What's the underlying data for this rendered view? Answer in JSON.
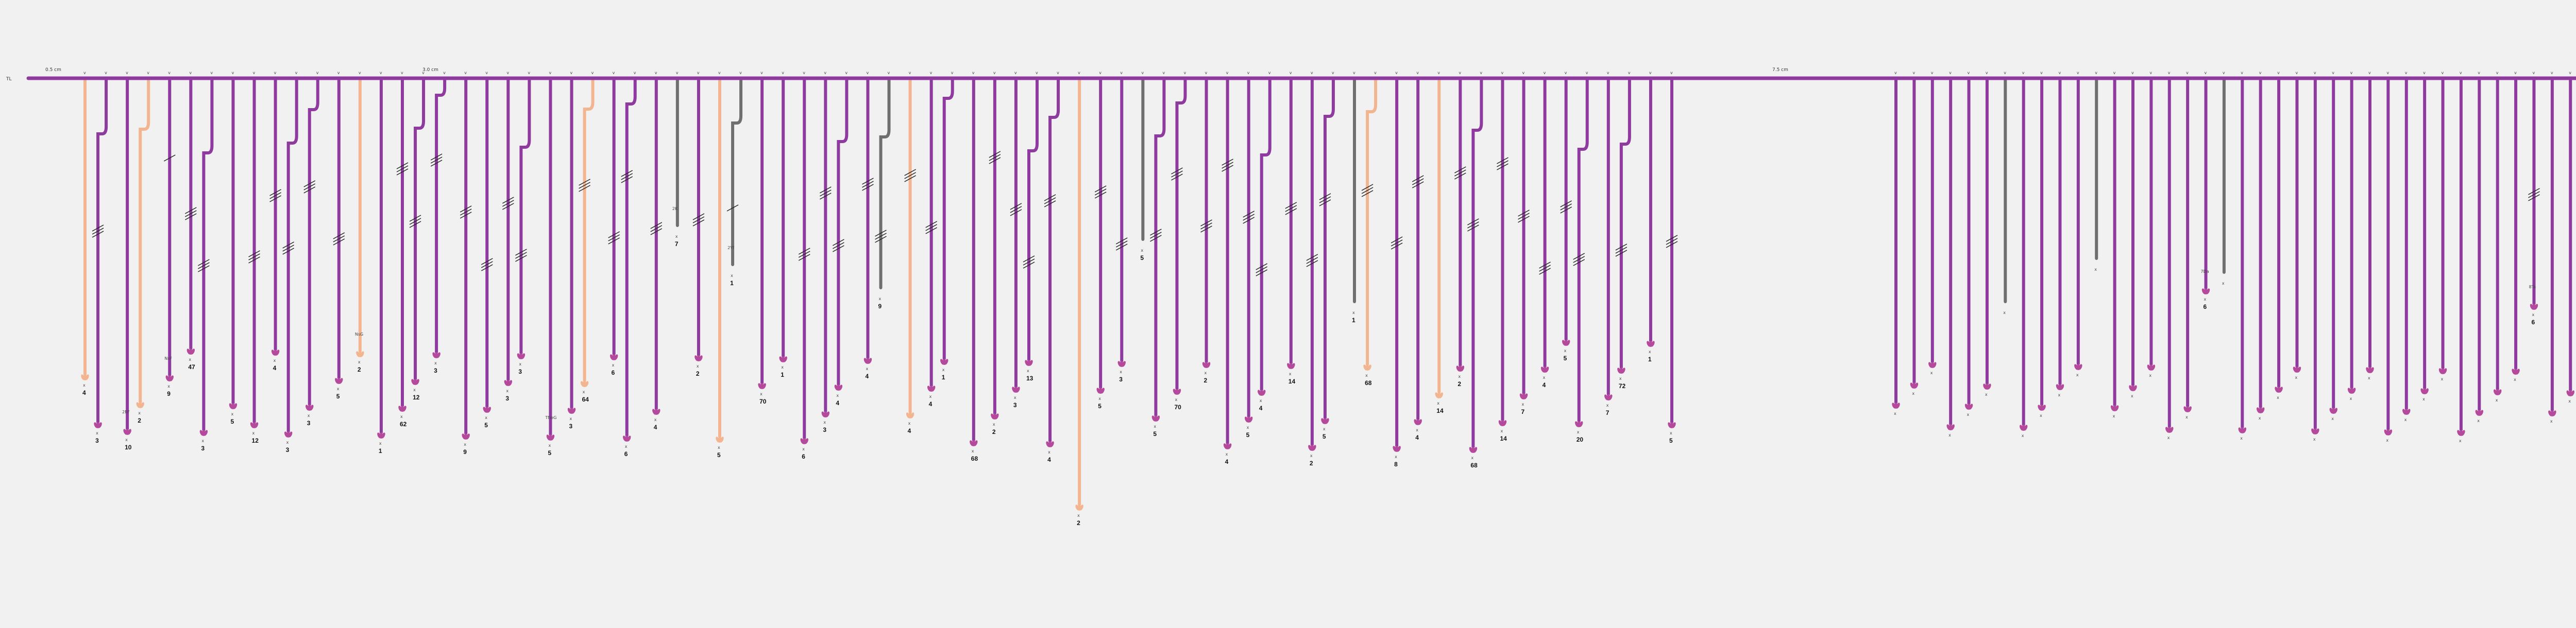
{
  "diagram": {
    "title": "",
    "trunk_label": "TL",
    "scale_labels": [
      "0.5 cm",
      "3.0 cm",
      "7.5 cm"
    ],
    "colors": {
      "purple": "#8e3a9e",
      "peach": "#f2b590",
      "gray": "#6f6f6f",
      "ink": "#222222"
    },
    "branches": [
      {
        "id": "b1",
        "type": "peach",
        "count": "4",
        "code": "",
        "ticks": "none"
      },
      {
        "id": "b2",
        "type": "purple",
        "count": "3",
        "code": "",
        "ticks": "double"
      },
      {
        "id": "b3",
        "type": "purple",
        "count": "10",
        "code": "2Nf",
        "ticks": "none"
      },
      {
        "id": "b4",
        "type": "peach",
        "count": "2",
        "code": "",
        "ticks": "none"
      },
      {
        "id": "b5",
        "type": "purple",
        "count": "9",
        "code": "NsF",
        "ticks": "single"
      },
      {
        "id": "b6",
        "type": "purple",
        "count": "47",
        "code": "",
        "ticks": "double"
      },
      {
        "id": "b7",
        "type": "purple",
        "count": "3",
        "code": "",
        "ticks": "double"
      },
      {
        "id": "b8",
        "type": "purple",
        "count": "5",
        "code": "",
        "ticks": "none"
      },
      {
        "id": "b9",
        "type": "purple",
        "count": "12",
        "code": "",
        "ticks": "double"
      },
      {
        "id": "b10",
        "type": "purple",
        "count": "4",
        "code": "",
        "ticks": "double"
      },
      {
        "id": "b11",
        "type": "purple",
        "count": "3",
        "code": "",
        "ticks": "double"
      },
      {
        "id": "b12",
        "type": "purple",
        "count": "3",
        "code": "",
        "ticks": "double"
      },
      {
        "id": "b13",
        "type": "purple",
        "count": "5",
        "code": "",
        "ticks": "double"
      },
      {
        "id": "b14",
        "type": "peach",
        "count": "2",
        "code": "NsG",
        "ticks": "none"
      },
      {
        "id": "b15",
        "type": "purple",
        "count": "1",
        "code": "",
        "ticks": "none"
      },
      {
        "id": "b16",
        "type": "purple",
        "count": "62",
        "code": "",
        "ticks": "double"
      },
      {
        "id": "b17",
        "type": "purple",
        "count": "12",
        "code": "",
        "ticks": "double"
      },
      {
        "id": "b18",
        "type": "purple",
        "count": "3",
        "code": "",
        "ticks": "double"
      },
      {
        "id": "b19",
        "type": "purple",
        "count": "9",
        "code": "",
        "ticks": "double"
      },
      {
        "id": "b20",
        "type": "purple",
        "count": "5",
        "code": "",
        "ticks": "double"
      },
      {
        "id": "b21",
        "type": "purple",
        "count": "3",
        "code": "",
        "ticks": "double"
      },
      {
        "id": "b22",
        "type": "purple",
        "count": "3",
        "code": "",
        "ticks": "double"
      },
      {
        "id": "b23",
        "type": "purple",
        "count": "5",
        "code": "TNeG",
        "ticks": "none"
      },
      {
        "id": "b24",
        "type": "purple",
        "count": "3",
        "code": "",
        "ticks": "none"
      },
      {
        "id": "b25",
        "type": "peach",
        "count": "64",
        "code": "",
        "ticks": "double"
      },
      {
        "id": "b26",
        "type": "purple",
        "count": "6",
        "code": "",
        "ticks": "double"
      },
      {
        "id": "b27",
        "type": "purple",
        "count": "6",
        "code": "",
        "ticks": "double"
      },
      {
        "id": "b28",
        "type": "purple",
        "count": "4",
        "code": "",
        "ticks": "double"
      },
      {
        "id": "b29",
        "type": "gray",
        "count": "7",
        "code": "2K",
        "ticks": "none"
      },
      {
        "id": "b30",
        "type": "purple",
        "count": "2",
        "code": "",
        "ticks": "double"
      },
      {
        "id": "b31",
        "type": "peach",
        "count": "5",
        "code": "",
        "ticks": "none"
      },
      {
        "id": "b32",
        "type": "gray",
        "count": "1",
        "code": "2Yf",
        "ticks": "single"
      },
      {
        "id": "b33",
        "type": "purple",
        "count": "70",
        "code": "",
        "ticks": "none"
      },
      {
        "id": "b34",
        "type": "purple",
        "count": "1",
        "code": "",
        "ticks": "none"
      },
      {
        "id": "b35",
        "type": "purple",
        "count": "6",
        "code": "",
        "ticks": "double"
      },
      {
        "id": "b36",
        "type": "purple",
        "count": "3",
        "code": "",
        "ticks": "double"
      },
      {
        "id": "b37",
        "type": "purple",
        "count": "4",
        "code": "",
        "ticks": "double"
      },
      {
        "id": "b38",
        "type": "purple",
        "count": "4",
        "code": "",
        "ticks": "double"
      },
      {
        "id": "b39",
        "type": "gray",
        "count": "9",
        "code": "",
        "ticks": "double"
      },
      {
        "id": "b40",
        "type": "peach",
        "count": "4",
        "code": "",
        "ticks": "double"
      },
      {
        "id": "b41",
        "type": "purple",
        "count": "4",
        "code": "",
        "ticks": "double"
      },
      {
        "id": "b42",
        "type": "purple",
        "count": "1",
        "code": "",
        "ticks": "none"
      },
      {
        "id": "b43",
        "type": "purple",
        "count": "68",
        "code": "",
        "ticks": "none"
      },
      {
        "id": "b44",
        "type": "purple",
        "count": "2",
        "code": "",
        "ticks": "double"
      },
      {
        "id": "b45",
        "type": "purple",
        "count": "3",
        "code": "",
        "ticks": "double"
      },
      {
        "id": "b46",
        "type": "purple",
        "count": "13",
        "code": "",
        "ticks": "double"
      },
      {
        "id": "b47",
        "type": "purple",
        "count": "4",
        "code": "",
        "ticks": "double"
      },
      {
        "id": "b48",
        "type": "peach",
        "count": "2",
        "code": "",
        "ticks": "none"
      },
      {
        "id": "b49",
        "type": "purple",
        "count": "5",
        "code": "",
        "ticks": "double"
      },
      {
        "id": "b50",
        "type": "purple",
        "count": "3",
        "code": "",
        "ticks": "double"
      },
      {
        "id": "b51",
        "type": "gray",
        "count": "5",
        "code": "",
        "ticks": "none"
      },
      {
        "id": "b52",
        "type": "purple",
        "count": "5",
        "code": "",
        "ticks": "double"
      },
      {
        "id": "b53",
        "type": "purple",
        "count": "70",
        "code": "",
        "ticks": "double"
      },
      {
        "id": "b54",
        "type": "purple",
        "count": "2",
        "code": "",
        "ticks": "double"
      },
      {
        "id": "b55",
        "type": "purple",
        "count": "4",
        "code": "",
        "ticks": "double"
      },
      {
        "id": "b56",
        "type": "purple",
        "count": "5",
        "code": "",
        "ticks": "double"
      },
      {
        "id": "b57",
        "type": "purple",
        "count": "4",
        "code": "",
        "ticks": "double"
      },
      {
        "id": "b58",
        "type": "purple",
        "count": "14",
        "code": "",
        "ticks": "double"
      },
      {
        "id": "b59",
        "type": "purple",
        "count": "2",
        "code": "",
        "ticks": "double"
      },
      {
        "id": "b60",
        "type": "purple",
        "count": "5",
        "code": "",
        "ticks": "double"
      },
      {
        "id": "b61",
        "type": "gray",
        "count": "1",
        "code": "",
        "ticks": "none"
      },
      {
        "id": "b62",
        "type": "peach",
        "count": "68",
        "code": "",
        "ticks": "double"
      },
      {
        "id": "b63",
        "type": "purple",
        "count": "8",
        "code": "",
        "ticks": "double"
      },
      {
        "id": "b64",
        "type": "purple",
        "count": "4",
        "code": "",
        "ticks": "double"
      },
      {
        "id": "b65",
        "type": "peach",
        "count": "14",
        "code": "",
        "ticks": "none"
      },
      {
        "id": "b66",
        "type": "purple",
        "count": "2",
        "code": "",
        "ticks": "double"
      },
      {
        "id": "b67",
        "type": "purple",
        "count": "68",
        "code": "",
        "ticks": "double"
      },
      {
        "id": "b68",
        "type": "purple",
        "count": "14",
        "code": "",
        "ticks": "double"
      },
      {
        "id": "b69",
        "type": "purple",
        "count": "7",
        "code": "",
        "ticks": "double"
      },
      {
        "id": "b70",
        "type": "purple",
        "count": "4",
        "code": "",
        "ticks": "double"
      },
      {
        "id": "b71",
        "type": "purple",
        "count": "5",
        "code": "",
        "ticks": "double"
      },
      {
        "id": "b72",
        "type": "purple",
        "count": "20",
        "code": "",
        "ticks": "double"
      },
      {
        "id": "b73",
        "type": "purple",
        "count": "7",
        "code": "",
        "ticks": "none"
      },
      {
        "id": "b74",
        "type": "purple",
        "count": "72",
        "code": "",
        "ticks": "double"
      },
      {
        "id": "b75",
        "type": "purple",
        "count": "1",
        "code": "",
        "ticks": "none"
      },
      {
        "id": "b76",
        "type": "purple",
        "count": "5",
        "code": "",
        "ticks": "double"
      },
      {
        "id": "r1",
        "type": "purple",
        "count": "",
        "code": "",
        "ticks": "none"
      },
      {
        "id": "r2",
        "type": "purple",
        "count": "",
        "code": "",
        "ticks": "none"
      },
      {
        "id": "r3",
        "type": "purple",
        "count": "",
        "code": "",
        "ticks": "none"
      },
      {
        "id": "r4",
        "type": "purple",
        "count": "",
        "code": "",
        "ticks": "none"
      },
      {
        "id": "r5",
        "type": "purple",
        "count": "",
        "code": "",
        "ticks": "none"
      },
      {
        "id": "r6",
        "type": "purple",
        "count": "",
        "code": "",
        "ticks": "none"
      },
      {
        "id": "r7",
        "type": "gray",
        "count": "",
        "code": "",
        "ticks": "none"
      },
      {
        "id": "r8",
        "type": "purple",
        "count": "",
        "code": "",
        "ticks": "none"
      },
      {
        "id": "r9",
        "type": "purple",
        "count": "",
        "code": "",
        "ticks": "none"
      },
      {
        "id": "r10",
        "type": "purple",
        "count": "",
        "code": "",
        "ticks": "none"
      },
      {
        "id": "r11",
        "type": "purple",
        "count": "",
        "code": "",
        "ticks": "none"
      },
      {
        "id": "r12",
        "type": "gray",
        "count": "",
        "code": "",
        "ticks": "none"
      },
      {
        "id": "r13",
        "type": "purple",
        "count": "",
        "code": "",
        "ticks": "none"
      },
      {
        "id": "r14",
        "type": "purple",
        "count": "",
        "code": "",
        "ticks": "none"
      },
      {
        "id": "r15",
        "type": "purple",
        "count": "",
        "code": "",
        "ticks": "none"
      },
      {
        "id": "r16",
        "type": "purple",
        "count": "",
        "code": "",
        "ticks": "none"
      },
      {
        "id": "r17",
        "type": "purple",
        "count": "",
        "code": "",
        "ticks": "none"
      },
      {
        "id": "r18",
        "type": "purple",
        "count": "6",
        "code": "7Da",
        "ticks": "none"
      },
      {
        "id": "r19",
        "type": "gray",
        "count": "",
        "code": "",
        "ticks": "none"
      },
      {
        "id": "r20",
        "type": "purple",
        "count": "",
        "code": "",
        "ticks": "none"
      },
      {
        "id": "r21",
        "type": "purple",
        "count": "",
        "code": "",
        "ticks": "none"
      },
      {
        "id": "r22",
        "type": "purple",
        "count": "",
        "code": "",
        "ticks": "none"
      },
      {
        "id": "r23",
        "type": "purple",
        "count": "",
        "code": "",
        "ticks": "none"
      },
      {
        "id": "r24",
        "type": "purple",
        "count": "",
        "code": "",
        "ticks": "none"
      },
      {
        "id": "r25",
        "type": "purple",
        "count": "",
        "code": "",
        "ticks": "none"
      },
      {
        "id": "r26",
        "type": "purple",
        "count": "",
        "code": "",
        "ticks": "none"
      },
      {
        "id": "r27",
        "type": "purple",
        "count": "",
        "code": "",
        "ticks": "none"
      },
      {
        "id": "r28",
        "type": "purple",
        "count": "",
        "code": "",
        "ticks": "none"
      },
      {
        "id": "r29",
        "type": "purple",
        "count": "",
        "code": "",
        "ticks": "none"
      },
      {
        "id": "r30",
        "type": "purple",
        "count": "",
        "code": "",
        "ticks": "none"
      },
      {
        "id": "r31",
        "type": "purple",
        "count": "",
        "code": "",
        "ticks": "none"
      },
      {
        "id": "r32",
        "type": "purple",
        "count": "",
        "code": "",
        "ticks": "none"
      },
      {
        "id": "r33",
        "type": "purple",
        "count": "",
        "code": "",
        "ticks": "none"
      },
      {
        "id": "r34",
        "type": "purple",
        "count": "",
        "code": "",
        "ticks": "none"
      },
      {
        "id": "r35",
        "type": "purple",
        "count": "",
        "code": "",
        "ticks": "none"
      },
      {
        "id": "r36",
        "type": "purple",
        "count": "6",
        "code": "8Ta",
        "ticks": "double"
      },
      {
        "id": "r37",
        "type": "purple",
        "count": "",
        "code": "",
        "ticks": "none"
      },
      {
        "id": "r38",
        "type": "purple",
        "count": "",
        "code": "",
        "ticks": "none"
      },
      {
        "id": "r39",
        "type": "purple",
        "count": "",
        "code": "",
        "ticks": "none"
      },
      {
        "id": "r40",
        "type": "purple",
        "count": "2",
        "code": "",
        "ticks": "none"
      }
    ]
  }
}
